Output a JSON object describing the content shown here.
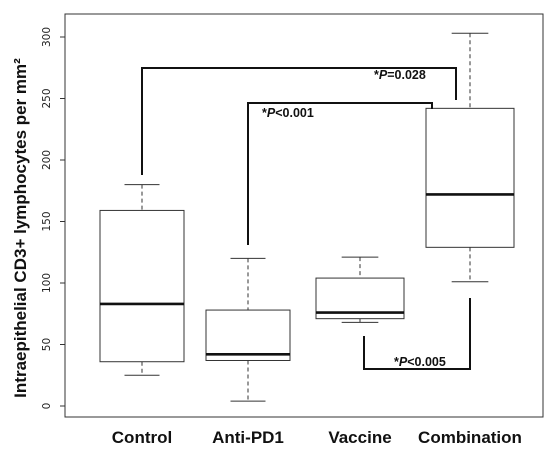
{
  "chart_data": {
    "type": "box",
    "title": "",
    "xlabel": "",
    "ylabel": "Intraepithelial CD3+ lymphocytes  per mm²",
    "ylim": [
      0,
      310
    ],
    "yticks": [
      0,
      50,
      100,
      150,
      200,
      250,
      300
    ],
    "grid": false,
    "categories": [
      "Control",
      "Anti-PD1",
      "Vaccine",
      "Combination"
    ],
    "boxes": [
      {
        "name": "Control",
        "min": 25,
        "q1": 36,
        "median": 83,
        "q3": 159,
        "max": 180
      },
      {
        "name": "Anti-PD1",
        "min": 4,
        "q1": 37,
        "median": 42,
        "q3": 78,
        "max": 120
      },
      {
        "name": "Vaccine",
        "min": 68,
        "q1": 71,
        "median": 76,
        "q3": 104,
        "max": 121
      },
      {
        "name": "Combination",
        "min": 101,
        "q1": 129,
        "median": 172,
        "q3": 242,
        "max": 303
      }
    ],
    "annotations": [
      {
        "from": "Control",
        "to": "Combination",
        "star": "*",
        "p_symbol": "P",
        "p_text": "=0.028"
      },
      {
        "from": "Anti-PD1",
        "to": "Combination",
        "star": "*",
        "p_symbol": "P",
        "p_text": "<0.001"
      },
      {
        "from": "Vaccine",
        "to": "Combination",
        "star": "*",
        "p_symbol": "P",
        "p_text": "<0.005"
      }
    ]
  }
}
